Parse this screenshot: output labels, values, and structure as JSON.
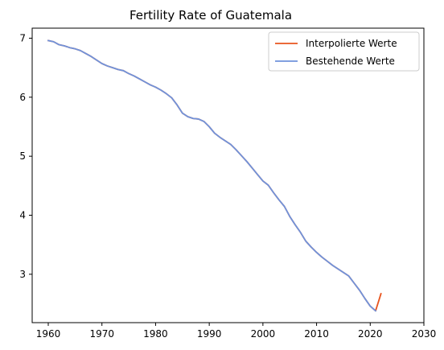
{
  "chart_data": {
    "type": "line",
    "title": "Fertility Rate of Guatemala",
    "xlabel": "",
    "ylabel": "",
    "xlim": [
      1957,
      2030
    ],
    "ylim": [
      2.18,
      7.17
    ],
    "x_ticks": [
      1960,
      1970,
      1980,
      1990,
      2000,
      2010,
      2020,
      2030
    ],
    "y_ticks": [
      3,
      4,
      5,
      6,
      7
    ],
    "grid": false,
    "legend_position": "top-right",
    "colors": {
      "Interpolierte Werte": "#e8541e",
      "Bestehende Werte": "#6f93dc"
    },
    "series": [
      {
        "name": "Interpolierte Werte",
        "x": [
          1960,
          1961,
          1962,
          1963,
          1964,
          1965,
          1966,
          1967,
          1968,
          1969,
          1970,
          1971,
          1972,
          1973,
          1974,
          1975,
          1976,
          1977,
          1978,
          1979,
          1980,
          1981,
          1982,
          1983,
          1984,
          1985,
          1986,
          1987,
          1988,
          1989,
          1990,
          1991,
          1992,
          1993,
          1994,
          1995,
          1996,
          1997,
          1998,
          1999,
          2000,
          2001,
          2002,
          2003,
          2004,
          2005,
          2006,
          2007,
          2008,
          2009,
          2010,
          2011,
          2012,
          2013,
          2014,
          2015,
          2016,
          2017,
          2018,
          2019,
          2020,
          2021,
          2022
        ],
        "y": [
          6.96,
          6.94,
          6.89,
          6.87,
          6.84,
          6.82,
          6.79,
          6.74,
          6.69,
          6.63,
          6.57,
          6.53,
          6.5,
          6.47,
          6.45,
          6.4,
          6.36,
          6.31,
          6.26,
          6.21,
          6.17,
          6.12,
          6.06,
          5.99,
          5.87,
          5.73,
          5.67,
          5.64,
          5.63,
          5.59,
          5.5,
          5.39,
          5.32,
          5.26,
          5.2,
          5.11,
          5.01,
          4.91,
          4.8,
          4.69,
          4.58,
          4.51,
          4.38,
          4.26,
          4.15,
          3.98,
          3.84,
          3.71,
          3.56,
          3.46,
          3.37,
          3.29,
          3.22,
          3.15,
          3.09,
          3.03,
          2.97,
          2.85,
          2.73,
          2.59,
          2.46,
          2.38,
          2.67
        ]
      },
      {
        "name": "Bestehende Werte",
        "x": [
          1960,
          1961,
          1962,
          1963,
          1964,
          1965,
          1966,
          1967,
          1968,
          1969,
          1970,
          1971,
          1972,
          1973,
          1974,
          1975,
          1976,
          1977,
          1978,
          1979,
          1980,
          1981,
          1982,
          1983,
          1984,
          1985,
          1986,
          1987,
          1988,
          1989,
          1990,
          1991,
          1992,
          1993,
          1994,
          1995,
          1996,
          1997,
          1998,
          1999,
          2000,
          2001,
          2002,
          2003,
          2004,
          2005,
          2006,
          2007,
          2008,
          2009,
          2010,
          2011,
          2012,
          2013,
          2014,
          2015,
          2016,
          2017,
          2018,
          2019,
          2020,
          2021
        ],
        "y": [
          6.96,
          6.94,
          6.89,
          6.87,
          6.84,
          6.82,
          6.79,
          6.74,
          6.69,
          6.63,
          6.57,
          6.53,
          6.5,
          6.47,
          6.45,
          6.4,
          6.36,
          6.31,
          6.26,
          6.21,
          6.17,
          6.12,
          6.06,
          5.99,
          5.87,
          5.73,
          5.67,
          5.64,
          5.63,
          5.59,
          5.5,
          5.39,
          5.32,
          5.26,
          5.2,
          5.11,
          5.01,
          4.91,
          4.8,
          4.69,
          4.58,
          4.51,
          4.38,
          4.26,
          4.15,
          3.98,
          3.84,
          3.71,
          3.56,
          3.46,
          3.37,
          3.29,
          3.22,
          3.15,
          3.09,
          3.03,
          2.97,
          2.85,
          2.73,
          2.59,
          2.46,
          2.38
        ]
      }
    ]
  }
}
